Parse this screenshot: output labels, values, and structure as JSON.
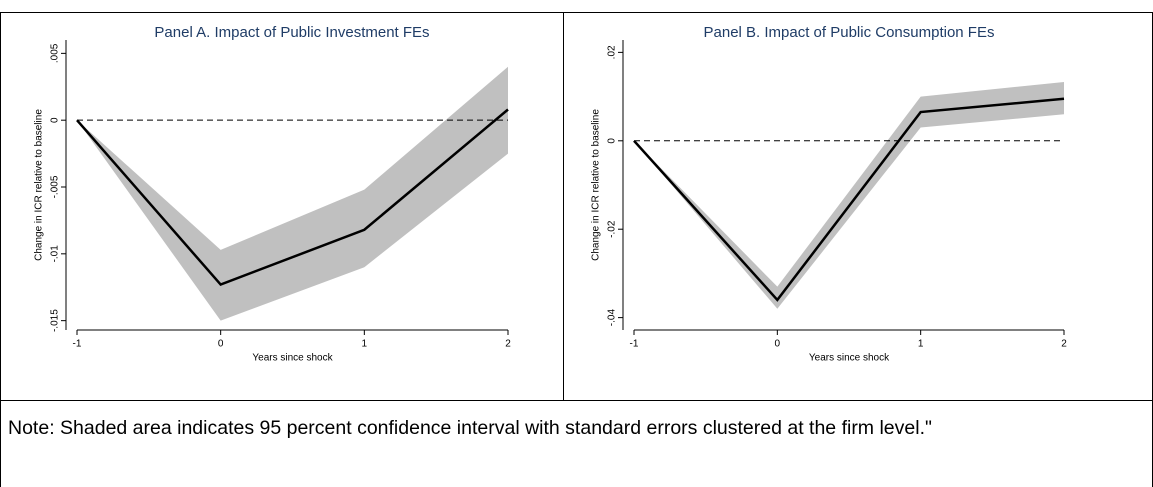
{
  "chart_data": [
    {
      "type": "line",
      "title": "Panel A. Impact of Public Investment FEs",
      "x_label": "Years since shock",
      "y_label": "Change in ICR relative to baseline",
      "x": [
        -1,
        0,
        1,
        2
      ],
      "values": [
        0,
        -0.0123,
        -0.0082,
        0.0008
      ],
      "ci_lower": [
        0,
        -0.015,
        -0.011,
        -0.0025
      ],
      "ci_upper": [
        0,
        -0.0097,
        -0.0052,
        0.004
      ],
      "color": "#000000",
      "band_color": "#c0c0c0",
      "title_color": "#1f3c66",
      "hline": 0,
      "xlim": [
        -1,
        2
      ],
      "xticks": [
        -1,
        0,
        1,
        2
      ],
      "ylim": [
        -0.0157,
        0.006
      ],
      "yticks": [
        {
          "value": 0.005,
          "label": ".005"
        },
        0,
        {
          "value": -0.005,
          "label": "-.005"
        },
        {
          "value": -0.01,
          "label": "-.01"
        },
        {
          "value": -0.015,
          "label": "-.015"
        }
      ]
    },
    {
      "type": "line",
      "title": "Panel B. Impact of Public Consumption FEs",
      "x_label": "Years since shock",
      "y_label": "Change in ICR relative to baseline",
      "x": [
        -1,
        0,
        1,
        2
      ],
      "values": [
        0,
        -0.036,
        0.0065,
        0.0095
      ],
      "ci_lower": [
        0,
        -0.038,
        0.003,
        0.006
      ],
      "ci_upper": [
        0,
        -0.033,
        0.01,
        0.0133
      ],
      "color": "#000000",
      "band_color": "#c0c0c0",
      "title_color": "#1f3c66",
      "hline": 0,
      "xlim": [
        -1,
        2
      ],
      "xticks": [
        -1,
        0,
        1,
        2
      ],
      "ylim": [
        -0.0428,
        0.0228
      ],
      "yticks": [
        {
          "value": 0.02,
          "label": ".02"
        },
        0,
        {
          "value": -0.02,
          "label": "-.02"
        },
        {
          "value": -0.04,
          "label": "-.04"
        }
      ]
    }
  ],
  "note": "Note: Shaded area indicates 95 percent confidence interval with standard errors clustered at the firm level.\""
}
